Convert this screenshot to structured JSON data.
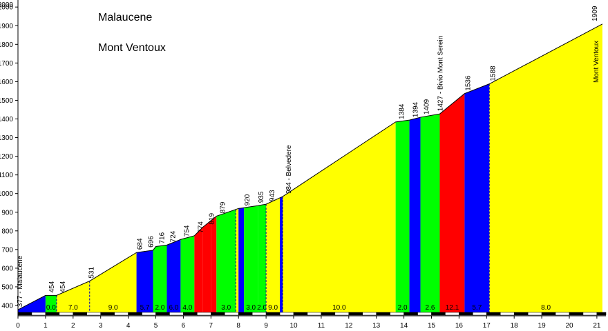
{
  "chart_data": {
    "type": "area",
    "title": "Malaucene",
    "subtitle": "Mont Ventoux",
    "xlabel": "",
    "ylabel": "",
    "xlim": [
      0,
      21.3
    ],
    "ylim": [
      350,
      2000
    ],
    "x_ticks": [
      0,
      1,
      2,
      3,
      4,
      5,
      6,
      7,
      8,
      9,
      10,
      11,
      12,
      13,
      14,
      15,
      16,
      17,
      18,
      19,
      20,
      21
    ],
    "y_ticks": [
      400,
      500,
      600,
      700,
      800,
      900,
      1000,
      1100,
      1200,
      1300,
      1400,
      1500,
      1600,
      1700,
      1800,
      1900,
      2000
    ],
    "grid": false,
    "colors": {
      "yellow": "#ffff00",
      "green": "#00ff00",
      "blue": "#0000ff",
      "red": "#ff0000",
      "navy": "#000080"
    },
    "profile": [
      {
        "x": 0,
        "y": 377
      },
      {
        "x": 1.0,
        "y": 454
      },
      {
        "x": 1.4,
        "y": 454
      },
      {
        "x": 2.6,
        "y": 531
      },
      {
        "x": 4.3,
        "y": 684
      },
      {
        "x": 4.9,
        "y": 696
      },
      {
        "x": 5.0,
        "y": 716
      },
      {
        "x": 5.4,
        "y": 724
      },
      {
        "x": 5.9,
        "y": 754
      },
      {
        "x": 6.4,
        "y": 774
      },
      {
        "x": 6.7,
        "y": 819
      },
      {
        "x": 7.2,
        "y": 879
      },
      {
        "x": 8.0,
        "y": 920
      },
      {
        "x": 8.7,
        "y": 935
      },
      {
        "x": 9.0,
        "y": 943
      },
      {
        "x": 9.6,
        "y": 984
      },
      {
        "x": 13.7,
        "y": 1384
      },
      {
        "x": 14.2,
        "y": 1394
      },
      {
        "x": 14.6,
        "y": 1409
      },
      {
        "x": 15.3,
        "y": 1427
      },
      {
        "x": 16.2,
        "y": 1536
      },
      {
        "x": 17.1,
        "y": 1588
      },
      {
        "x": 21.2,
        "y": 1909
      }
    ],
    "segments": [
      {
        "from": 0,
        "to": 1.0,
        "color": "blue"
      },
      {
        "from": 1.0,
        "to": 1.4,
        "color": "green",
        "label": "0.0"
      },
      {
        "from": 1.4,
        "to": 2.6,
        "color": "yellow",
        "label": "7.0"
      },
      {
        "from": 2.6,
        "to": 4.3,
        "color": "yellow",
        "label": "9.0"
      },
      {
        "from": 4.3,
        "to": 4.9,
        "color": "blue",
        "label": "5.7"
      },
      {
        "from": 4.9,
        "to": 5.4,
        "color": "green",
        "label": "2.0"
      },
      {
        "from": 5.4,
        "to": 5.9,
        "color": "blue",
        "label": "6.0"
      },
      {
        "from": 5.9,
        "to": 6.4,
        "color": "green",
        "label": "4.0"
      },
      {
        "from": 6.4,
        "to": 6.7,
        "color": "red"
      },
      {
        "from": 6.7,
        "to": 7.0,
        "color": "red"
      },
      {
        "from": 7.0,
        "to": 7.2,
        "color": "red"
      },
      {
        "from": 7.2,
        "to": 7.9,
        "color": "green",
        "label": "3.0"
      },
      {
        "from": 7.9,
        "to": 8.0,
        "color": "yellow"
      },
      {
        "from": 8.0,
        "to": 8.2,
        "color": "blue"
      },
      {
        "from": 8.2,
        "to": 8.7,
        "color": "green",
        "label": "3.0"
      },
      {
        "from": 8.7,
        "to": 9.0,
        "color": "green",
        "label": "2.0"
      },
      {
        "from": 9.0,
        "to": 9.5,
        "color": "yellow",
        "label": "9.0"
      },
      {
        "from": 9.5,
        "to": 9.6,
        "color": "blue"
      },
      {
        "from": 9.6,
        "to": 13.7,
        "color": "yellow",
        "label": "10.0"
      },
      {
        "from": 13.7,
        "to": 14.2,
        "color": "green",
        "label": "2.0"
      },
      {
        "from": 14.2,
        "to": 14.6,
        "color": "blue"
      },
      {
        "from": 14.6,
        "to": 15.3,
        "color": "green",
        "label": "2.6"
      },
      {
        "from": 15.3,
        "to": 16.2,
        "color": "red",
        "label": "12.1"
      },
      {
        "from": 16.2,
        "to": 17.1,
        "color": "blue",
        "label": "5.7"
      },
      {
        "from": 17.1,
        "to": 21.2,
        "color": "yellow",
        "label": "8.0"
      }
    ],
    "annotations": [
      {
        "x": 0.05,
        "y": 377,
        "text": "377 - Malaucene"
      },
      {
        "x": 1.2,
        "y": 454,
        "text": "454"
      },
      {
        "x": 1.6,
        "y": 454,
        "text": "454"
      },
      {
        "x": 2.65,
        "y": 531,
        "text": "531"
      },
      {
        "x": 4.4,
        "y": 684,
        "text": "684"
      },
      {
        "x": 4.8,
        "y": 696,
        "text": "696"
      },
      {
        "x": 5.2,
        "y": 716,
        "text": "716"
      },
      {
        "x": 5.6,
        "y": 724,
        "text": "724"
      },
      {
        "x": 6.1,
        "y": 754,
        "text": "754"
      },
      {
        "x": 6.6,
        "y": 774,
        "text": "774"
      },
      {
        "x": 7.0,
        "y": 819,
        "text": "819"
      },
      {
        "x": 7.4,
        "y": 879,
        "text": "879"
      },
      {
        "x": 8.3,
        "y": 920,
        "text": "920"
      },
      {
        "x": 8.8,
        "y": 935,
        "text": "935"
      },
      {
        "x": 9.2,
        "y": 943,
        "text": "943"
      },
      {
        "x": 9.8,
        "y": 984,
        "text": "984 - Belvedere"
      },
      {
        "x": 13.9,
        "y": 1384,
        "text": "1384"
      },
      {
        "x": 14.4,
        "y": 1394,
        "text": "1394"
      },
      {
        "x": 14.8,
        "y": 1409,
        "text": "1409"
      },
      {
        "x": 15.3,
        "y": 1427,
        "text": "1427 - Bivio Mont Serein"
      },
      {
        "x": 16.3,
        "y": 1536,
        "text": "1536"
      },
      {
        "x": 17.2,
        "y": 1588,
        "text": "1588"
      },
      {
        "x": 20.9,
        "y": 1909,
        "text": "1909"
      }
    ],
    "summit_label": "Mont Ventoux"
  }
}
